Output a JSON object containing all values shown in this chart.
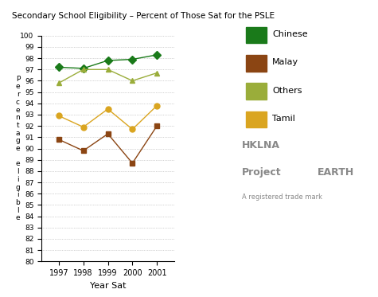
{
  "title": "Secondary School Eligibility – Percent of Those Sat for the PSLE",
  "xlabel": "Year Sat",
  "years": [
    1997,
    1998,
    1999,
    2000,
    2001
  ],
  "chinese": [
    97.2,
    97.1,
    97.8,
    97.9,
    98.3
  ],
  "malay": [
    90.8,
    89.8,
    91.3,
    88.7,
    92.0
  ],
  "others": [
    95.8,
    97.0,
    97.0,
    96.0,
    96.7
  ],
  "tamil": [
    92.9,
    91.9,
    93.5,
    91.7,
    93.8
  ],
  "color_chinese": "#1a7a1a",
  "color_malay": "#8B4513",
  "color_others": "#9aad3a",
  "color_tamil": "#DAA520",
  "ylim_min": 80,
  "ylim_max": 100,
  "yticks": [
    80,
    81,
    82,
    83,
    84,
    85,
    86,
    87,
    88,
    89,
    90,
    91,
    92,
    93,
    94,
    95,
    96,
    97,
    98,
    99,
    100
  ],
  "bg_color": "#ffffff",
  "ylabel_chars": [
    "P",
    "e",
    "r",
    "c",
    "e",
    "n",
    "t",
    "a",
    "g",
    "e",
    "",
    "e",
    "l",
    "i",
    "g",
    "i",
    "b",
    "l",
    "e"
  ]
}
